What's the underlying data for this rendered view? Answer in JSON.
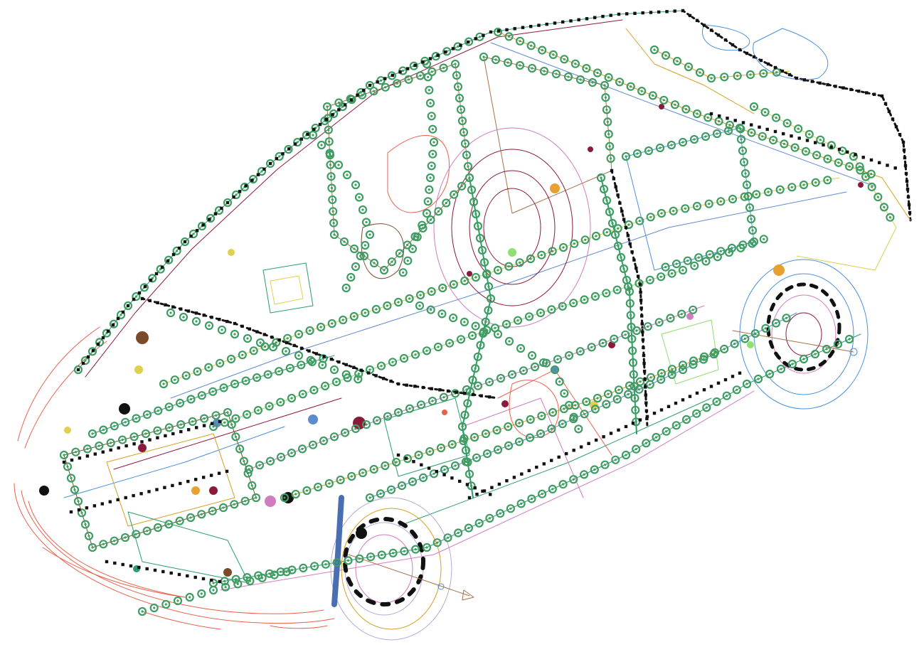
{
  "view": {
    "background": "#ffffff",
    "subject": "car-body-wireframe-spotweld-model",
    "projection": "isometric"
  },
  "palette": {
    "spot_weld_marker": "#3f9c63",
    "connector_node": "#111111",
    "front_bumper": "#e8604c",
    "rear_wheel_rings": "#4a90d9",
    "front_wheel_rings": "#b8a9d9",
    "tire_tread": "#111111",
    "axis_arrow": "#a8704a",
    "accent_parts": [
      "#8b1a3a",
      "#7a4a2a",
      "#e0d050",
      "#5d8ad0",
      "#d07cc0",
      "#8fe070",
      "#e8a030"
    ]
  },
  "scene": {
    "weld_marker_count_estimate": "many",
    "has_axis_arrows": true,
    "wheels": [
      "front-left",
      "rear-left"
    ]
  }
}
